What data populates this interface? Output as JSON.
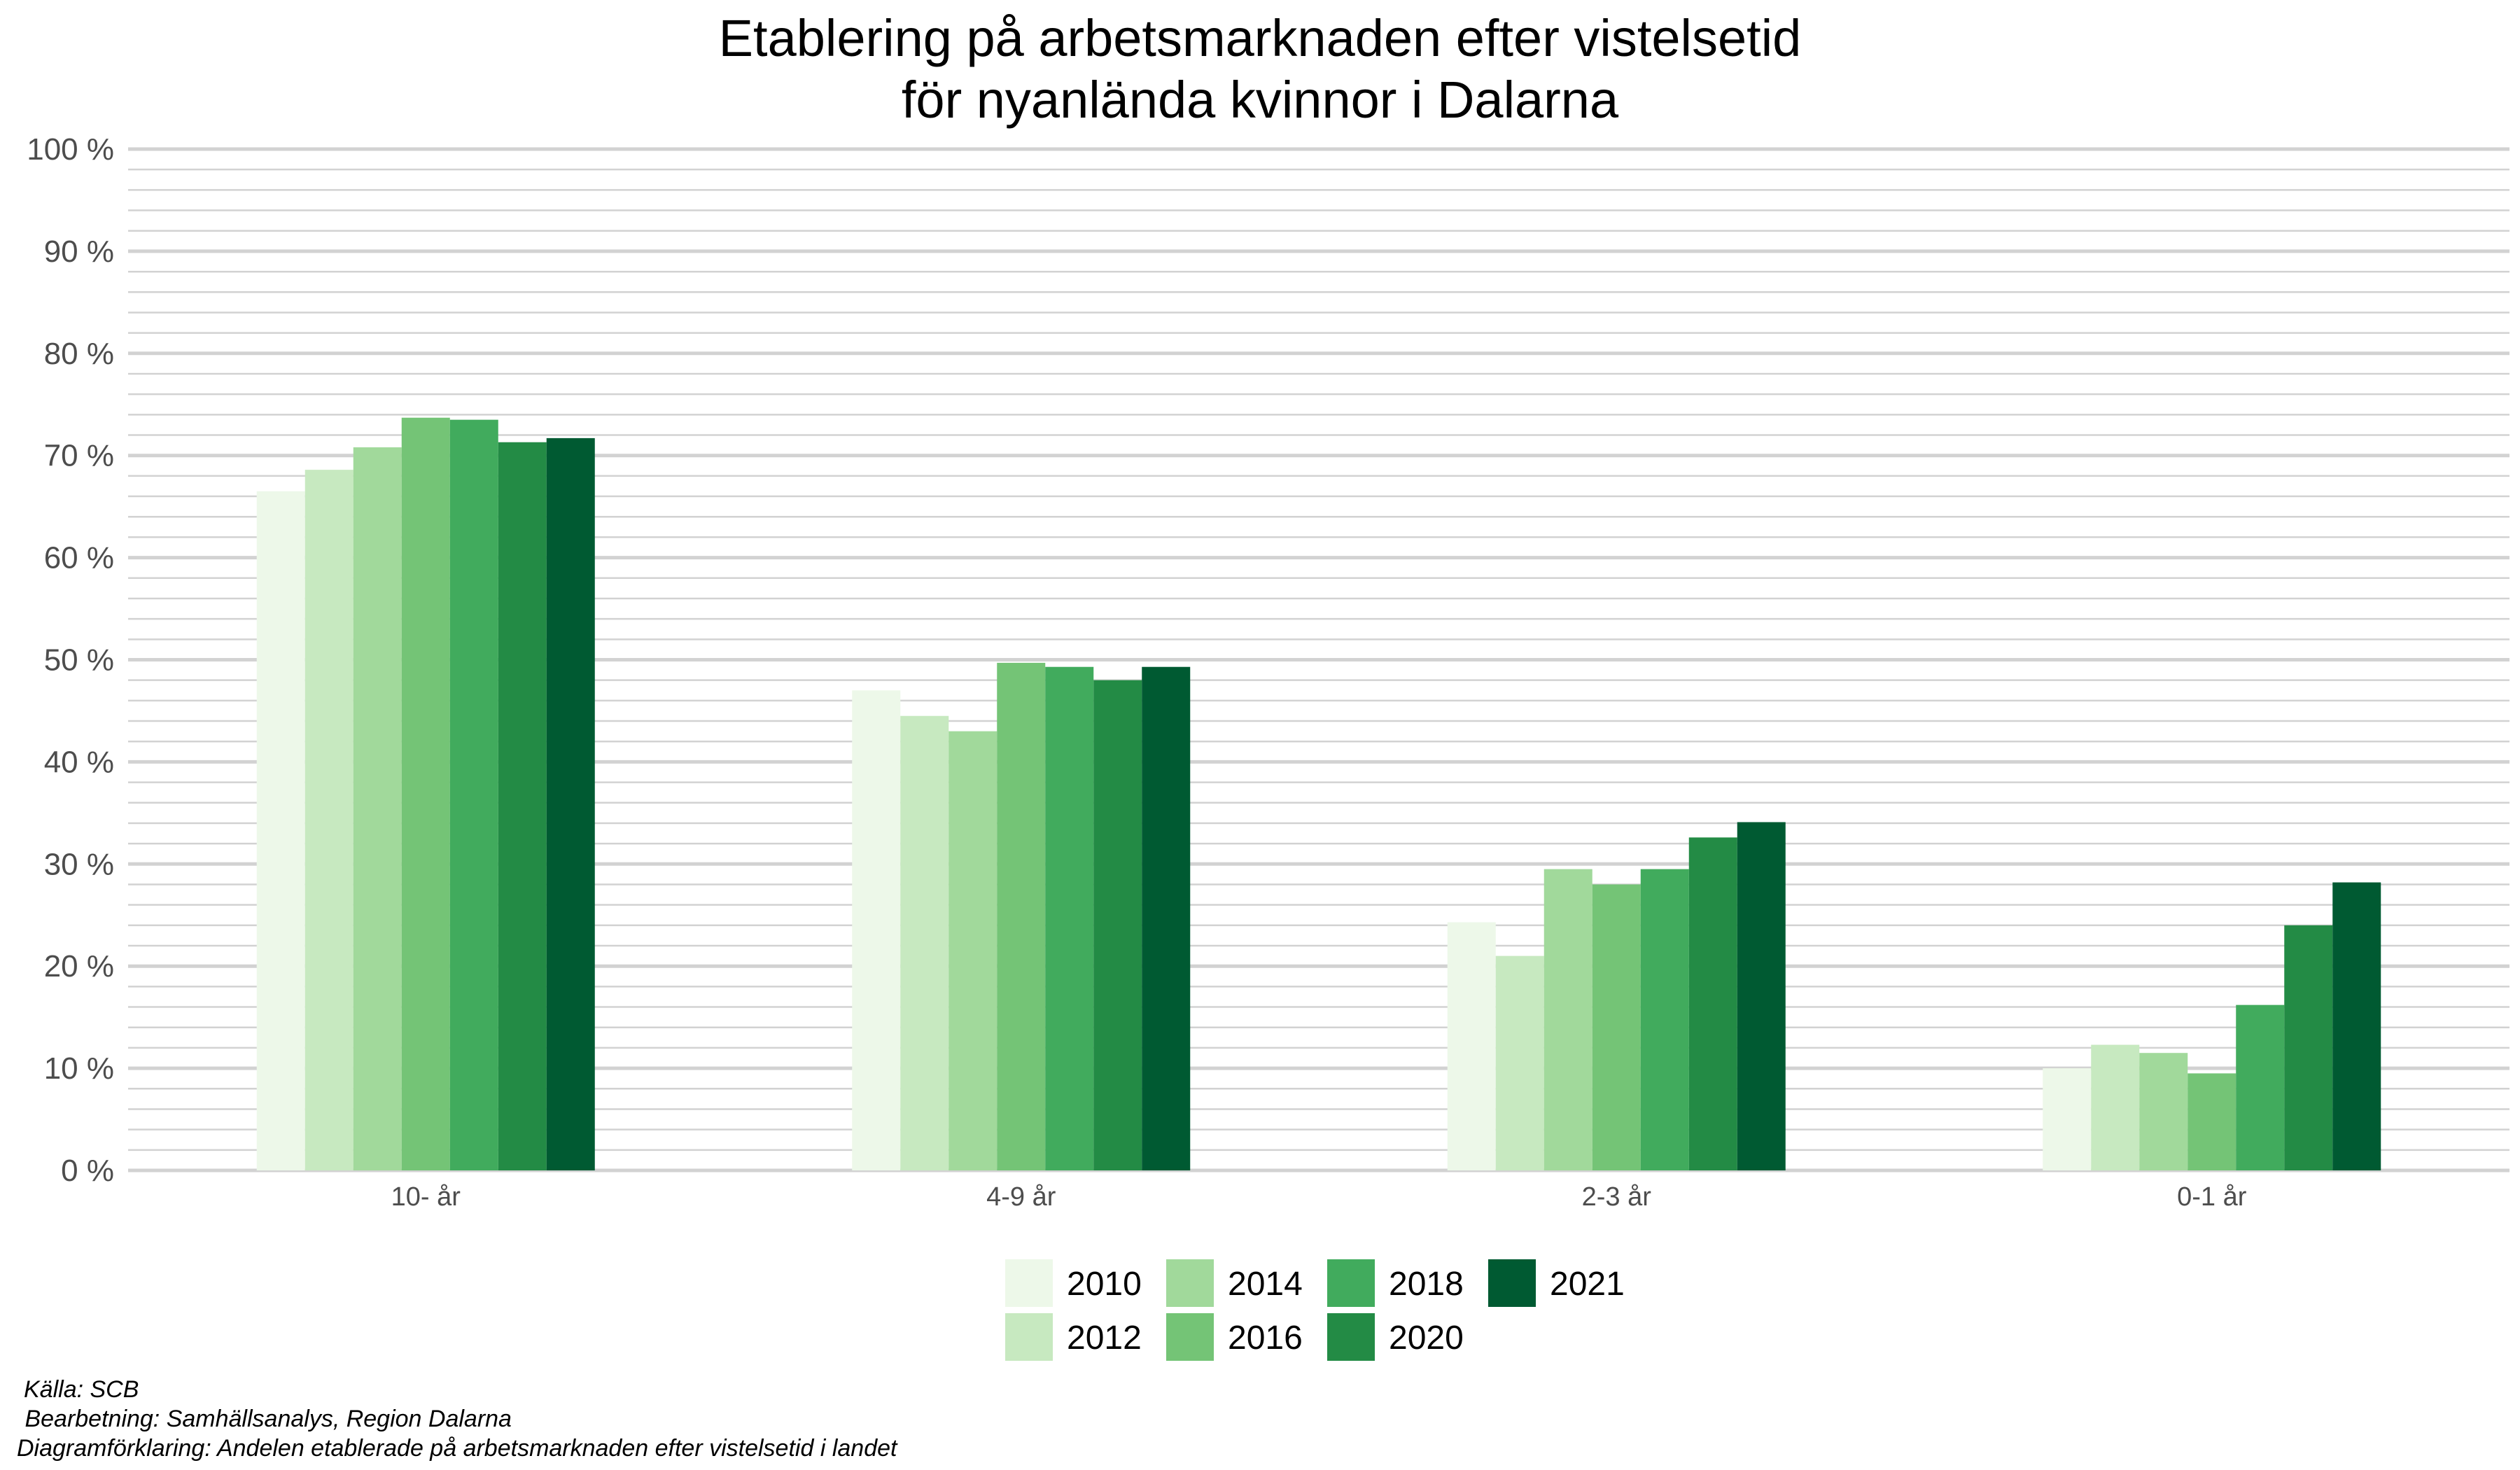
{
  "chart_data": {
    "type": "bar",
    "title": [
      "Etablering på arbetsmarknaden efter vistelsetid",
      "för nyanlända kvinnor i Dalarna"
    ],
    "xlabel": "",
    "ylabel": "",
    "ylim": [
      0,
      100
    ],
    "y_ticks": [
      "0 %",
      "10 %",
      "20 %",
      "30 %",
      "40 %",
      "50 %",
      "60 %",
      "70 %",
      "80 %",
      "90 %",
      "100 %"
    ],
    "categories": [
      "10- år",
      "4-9 år",
      "2-3 år",
      "0-1 år"
    ],
    "series": [
      {
        "name": "2010",
        "color": "#edf8e9",
        "values": [
          66.5,
          47.0,
          24.3,
          10.0
        ]
      },
      {
        "name": "2012",
        "color": "#c7e9c0",
        "values": [
          68.6,
          44.5,
          21.0,
          12.3
        ]
      },
      {
        "name": "2014",
        "color": "#a1d99b",
        "values": [
          70.8,
          43.0,
          29.5,
          11.5
        ]
      },
      {
        "name": "2016",
        "color": "#74c476",
        "values": [
          73.7,
          49.7,
          28.0,
          9.5
        ]
      },
      {
        "name": "2018",
        "color": "#41ab5d",
        "values": [
          73.5,
          49.3,
          29.5,
          16.2
        ]
      },
      {
        "name": "2020",
        "color": "#238b45",
        "values": [
          71.3,
          48.0,
          32.6,
          24.0
        ]
      },
      {
        "name": "2021",
        "color": "#005a32",
        "values": [
          71.7,
          49.3,
          34.1,
          28.2
        ]
      }
    ],
    "grid": true,
    "legend_position": "bottom"
  },
  "captions": [
    "Källa: SCB",
    " Bearbetning: Samhällsanalys, Region Dalarna",
    "Diagramförklaring: Andelen etablerade på arbetsmarknaden efter vistelsetid i landet"
  ]
}
